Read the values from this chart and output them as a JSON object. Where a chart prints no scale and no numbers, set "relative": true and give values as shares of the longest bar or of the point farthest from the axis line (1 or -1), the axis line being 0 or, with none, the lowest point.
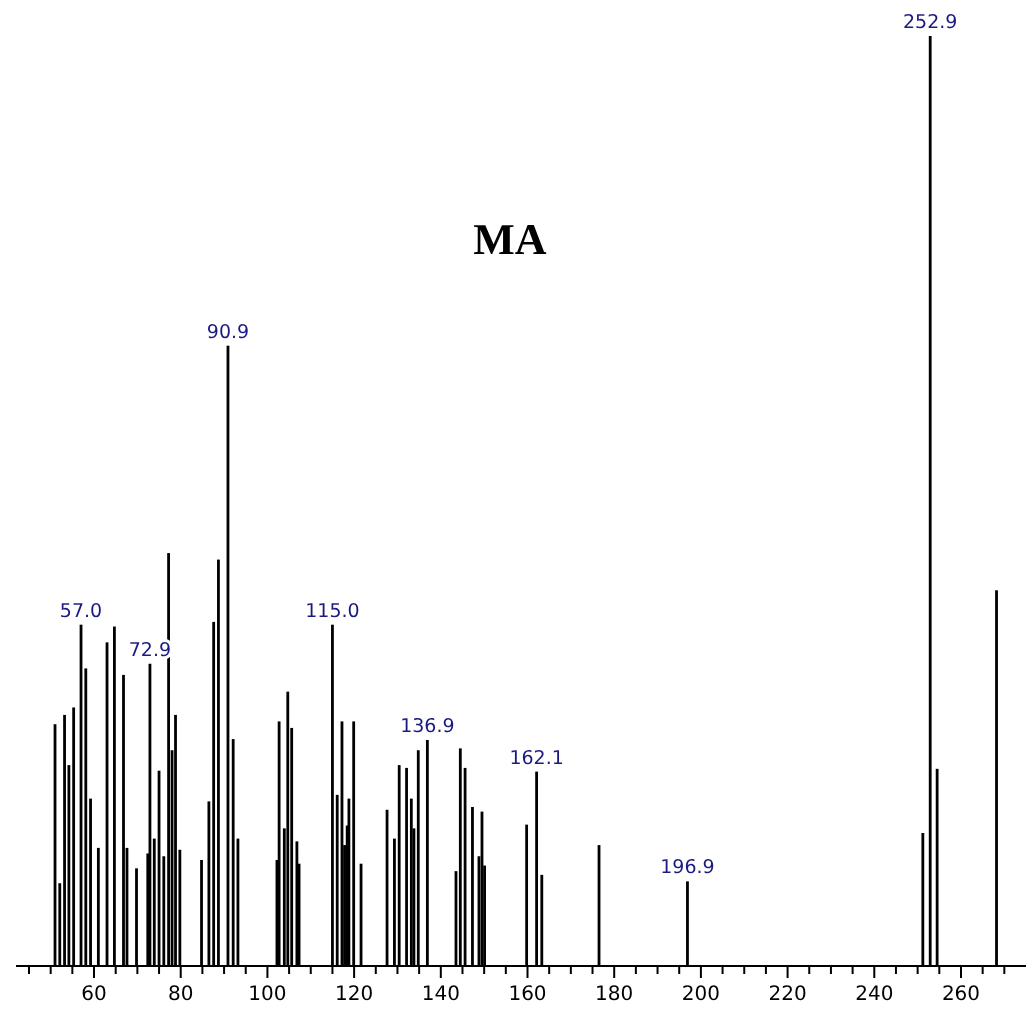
{
  "chart_data": {
    "type": "bar",
    "title": "MA",
    "relative": true,
    "color": "#000000",
    "x": [
      51.0,
      52.1,
      53.2,
      54.2,
      55.3,
      57.0,
      58.1,
      59.2,
      61.0,
      63.0,
      64.7,
      66.8,
      67.6,
      69.8,
      72.4,
      72.9,
      73.9,
      75.0,
      76.1,
      77.2,
      78.0,
      78.8,
      79.8,
      84.8,
      86.5,
      87.6,
      88.7,
      90.9,
      92.1,
      93.2,
      102.2,
      102.7,
      103.9,
      104.7,
      105.6,
      106.8,
      107.3,
      115.0,
      116.1,
      117.2,
      117.8,
      118.4,
      118.8,
      119.9,
      121.6,
      127.6,
      129.3,
      130.4,
      132.1,
      133.2,
      133.8,
      134.8,
      136.9,
      143.5,
      144.5,
      145.6,
      147.3,
      148.8,
      149.5,
      150.1,
      159.8,
      162.1,
      163.3,
      176.5,
      196.9,
      251.2,
      252.9,
      254.5,
      268.2
    ],
    "values": [
      0.26,
      0.089,
      0.27,
      0.216,
      0.278,
      0.367,
      0.32,
      0.18,
      0.127,
      0.348,
      0.365,
      0.313,
      0.127,
      0.105,
      0.121,
      0.325,
      0.137,
      0.21,
      0.118,
      0.444,
      0.232,
      0.27,
      0.125,
      0.114,
      0.177,
      0.37,
      0.437,
      0.667,
      0.244,
      0.137,
      0.114,
      0.263,
      0.148,
      0.295,
      0.256,
      0.134,
      0.11,
      0.367,
      0.184,
      0.263,
      0.13,
      0.151,
      0.18,
      0.263,
      0.11,
      0.168,
      0.137,
      0.216,
      0.213,
      0.18,
      0.148,
      0.232,
      0.243,
      0.102,
      0.234,
      0.213,
      0.171,
      0.118,
      0.166,
      0.108,
      0.152,
      0.209,
      0.098,
      0.13,
      0.091,
      0.143,
      1,
      0.212,
      0.404
    ],
    "xlim": [
      42,
      275
    ],
    "xticks": [
      {
        "value": 45,
        "label": null
      },
      {
        "value": 50,
        "label": null
      },
      {
        "value": 55,
        "label": null
      },
      60,
      {
        "value": 65,
        "label": null
      },
      {
        "value": 70,
        "label": null
      },
      {
        "value": 75,
        "label": null
      },
      80,
      {
        "value": 85,
        "label": null
      },
      {
        "value": 90,
        "label": null
      },
      {
        "value": 95,
        "label": null
      },
      100,
      {
        "value": 105,
        "label": null
      },
      {
        "value": 110,
        "label": null
      },
      {
        "value": 115,
        "label": null
      },
      120,
      {
        "value": 125,
        "label": null
      },
      {
        "value": 130,
        "label": null
      },
      {
        "value": 135,
        "label": null
      },
      140,
      {
        "value": 145,
        "label": null
      },
      {
        "value": 150,
        "label": null
      },
      {
        "value": 155,
        "label": null
      },
      160,
      {
        "value": 165,
        "label": null
      },
      {
        "value": 170,
        "label": null
      },
      {
        "value": 175,
        "label": null
      },
      180,
      {
        "value": 185,
        "label": null
      },
      {
        "value": 190,
        "label": null
      },
      {
        "value": 195,
        "label": null
      },
      200,
      {
        "value": 205,
        "label": null
      },
      {
        "value": 210,
        "label": null
      },
      {
        "value": 215,
        "label": null
      },
      220,
      {
        "value": 225,
        "label": null
      },
      {
        "value": 230,
        "label": null
      },
      {
        "value": 235,
        "label": null
      },
      240,
      {
        "value": 245,
        "label": null
      },
      {
        "value": 250,
        "label": null
      },
      {
        "value": 255,
        "label": null
      },
      260,
      {
        "value": 265,
        "label": null
      },
      {
        "value": 270,
        "label": null
      }
    ],
    "annotations": [
      {
        "text": "57.0",
        "x": 57.0,
        "y": 0.367
      },
      {
        "text": "72.9",
        "x": 72.9,
        "y": 0.325
      },
      {
        "text": "90.9",
        "x": 90.9,
        "y": 0.667
      },
      {
        "text": "115.0",
        "x": 115.0,
        "y": 0.367
      },
      {
        "text": "136.9",
        "x": 136.9,
        "y": 0.243
      },
      {
        "text": "162.1",
        "x": 162.1,
        "y": 0.209
      },
      {
        "text": "196.9",
        "x": 196.9,
        "y": 0.091
      },
      {
        "text": "252.9",
        "x": 252.9,
        "y": 1
      }
    ]
  }
}
